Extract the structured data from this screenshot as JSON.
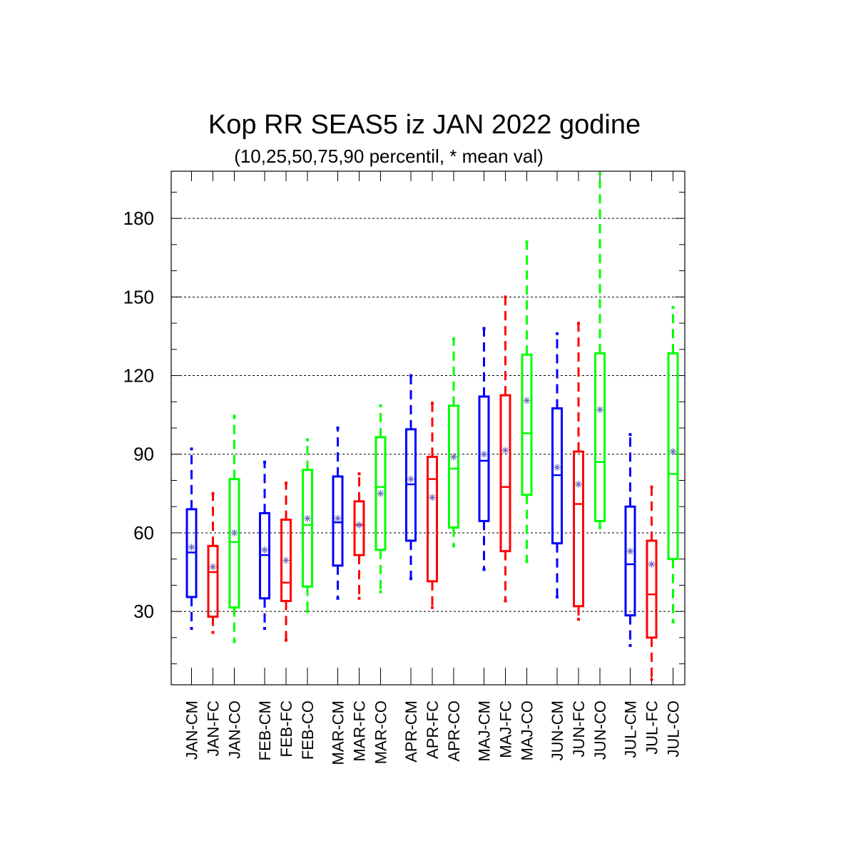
{
  "chart_data": {
    "type": "boxplot",
    "title": "Kop RR SEAS5 iz JAN 2022 godine",
    "subtitle": "(10,25,50,75,90 percentil, * mean val)",
    "ylim": [
      2,
      198
    ],
    "yticks": [
      "30",
      "60",
      "90",
      "120",
      "150",
      "180"
    ],
    "ytick_values": [
      30,
      60,
      90,
      120,
      150,
      180
    ],
    "grid": "horizontal dashed",
    "colors": {
      "CM": "#0000ff",
      "FC": "#ff0000",
      "CO": "#00ff00",
      "mean": "#6d6dbd"
    },
    "boxes": [
      {
        "label": "JAN-CM",
        "kind": "CM",
        "p10": 23.5,
        "p25": 35.5,
        "p50": 52.5,
        "p75": 69.0,
        "p90": 92.0,
        "mean": 54.5
      },
      {
        "label": "JAN-FC",
        "kind": "FC",
        "p10": 22.0,
        "p25": 28.0,
        "p50": 45.0,
        "p75": 55.0,
        "p90": 75.0,
        "mean": 47.0
      },
      {
        "label": "JAN-CO",
        "kind": "CO",
        "p10": 18.5,
        "p25": 31.5,
        "p50": 56.5,
        "p75": 80.5,
        "p90": 104.5,
        "mean": 60.0
      },
      {
        "label": "FEB-CM",
        "kind": "CM",
        "p10": 23.5,
        "p25": 35.0,
        "p50": 51.5,
        "p75": 67.5,
        "p90": 87.0,
        "mean": 53.5
      },
      {
        "label": "FEB-FC",
        "kind": "FC",
        "p10": 19.0,
        "p25": 34.0,
        "p50": 41.0,
        "p75": 65.0,
        "p90": 79.0,
        "mean": 49.5
      },
      {
        "label": "FEB-CO",
        "kind": "CO",
        "p10": 30.0,
        "p25": 39.5,
        "p50": 63.0,
        "p75": 84.0,
        "p90": 95.5,
        "mean": 65.5
      },
      {
        "label": "MAR-CM",
        "kind": "CM",
        "p10": 35.0,
        "p25": 47.5,
        "p50": 64.0,
        "p75": 81.5,
        "p90": 100.0,
        "mean": 65.5
      },
      {
        "label": "MAR-FC",
        "kind": "FC",
        "p10": 35.0,
        "p25": 51.5,
        "p50": 63.0,
        "p75": 72.0,
        "p90": 82.5,
        "mean": 63.0
      },
      {
        "label": "MAR-CO",
        "kind": "CO",
        "p10": 37.5,
        "p25": 53.5,
        "p50": 77.5,
        "p75": 96.5,
        "p90": 108.5,
        "mean": 75.0
      },
      {
        "label": "APR-CM",
        "kind": "CM",
        "p10": 42.5,
        "p25": 57.0,
        "p50": 78.5,
        "p75": 99.5,
        "p90": 120.0,
        "mean": 80.5
      },
      {
        "label": "APR-FC",
        "kind": "FC",
        "p10": 31.5,
        "p25": 41.5,
        "p50": 80.5,
        "p75": 89.0,
        "p90": 109.5,
        "mean": 73.5
      },
      {
        "label": "APR-CO",
        "kind": "CO",
        "p10": 55.0,
        "p25": 62.0,
        "p50": 84.5,
        "p75": 108.5,
        "p90": 134.0,
        "mean": 89.0
      },
      {
        "label": "MAJ-CM",
        "kind": "CM",
        "p10": 46.0,
        "p25": 64.5,
        "p50": 87.5,
        "p75": 112.0,
        "p90": 138.0,
        "mean": 90.0
      },
      {
        "label": "MAJ-FC",
        "kind": "FC",
        "p10": 34.0,
        "p25": 53.0,
        "p50": 77.5,
        "p75": 112.5,
        "p90": 150.0,
        "mean": 91.5
      },
      {
        "label": "MAJ-CO",
        "kind": "CO",
        "p10": 49.0,
        "p25": 74.5,
        "p50": 98.0,
        "p75": 128.0,
        "p90": 171.0,
        "mean": 110.5
      },
      {
        "label": "JUN-CM",
        "kind": "CM",
        "p10": 35.5,
        "p25": 56.0,
        "p50": 82.0,
        "p75": 107.5,
        "p90": 136.0,
        "mean": 85.0
      },
      {
        "label": "JUN-FC",
        "kind": "FC",
        "p10": 27.0,
        "p25": 32.0,
        "p50": 71.0,
        "p75": 91.0,
        "p90": 140.0,
        "mean": 78.5
      },
      {
        "label": "JUN-CO",
        "kind": "CO",
        "p10": 62.0,
        "p25": 64.5,
        "p50": 87.0,
        "p75": 128.5,
        "p90": 197.0,
        "mean": 107.0
      },
      {
        "label": "JUL-CM",
        "kind": "CM",
        "p10": 17.0,
        "p25": 28.5,
        "p50": 48.0,
        "p75": 70.0,
        "p90": 97.5,
        "mean": 53.0
      },
      {
        "label": "JUL-FC",
        "kind": "FC",
        "p10": 4.0,
        "p25": 20.0,
        "p50": 36.5,
        "p75": 57.0,
        "p90": 77.5,
        "mean": 48.0
      },
      {
        "label": "JUL-CO",
        "kind": "CO",
        "p10": 26.0,
        "p25": 50.0,
        "p50": 82.5,
        "p75": 128.5,
        "p90": 146.0,
        "mean": 91.0
      }
    ]
  }
}
